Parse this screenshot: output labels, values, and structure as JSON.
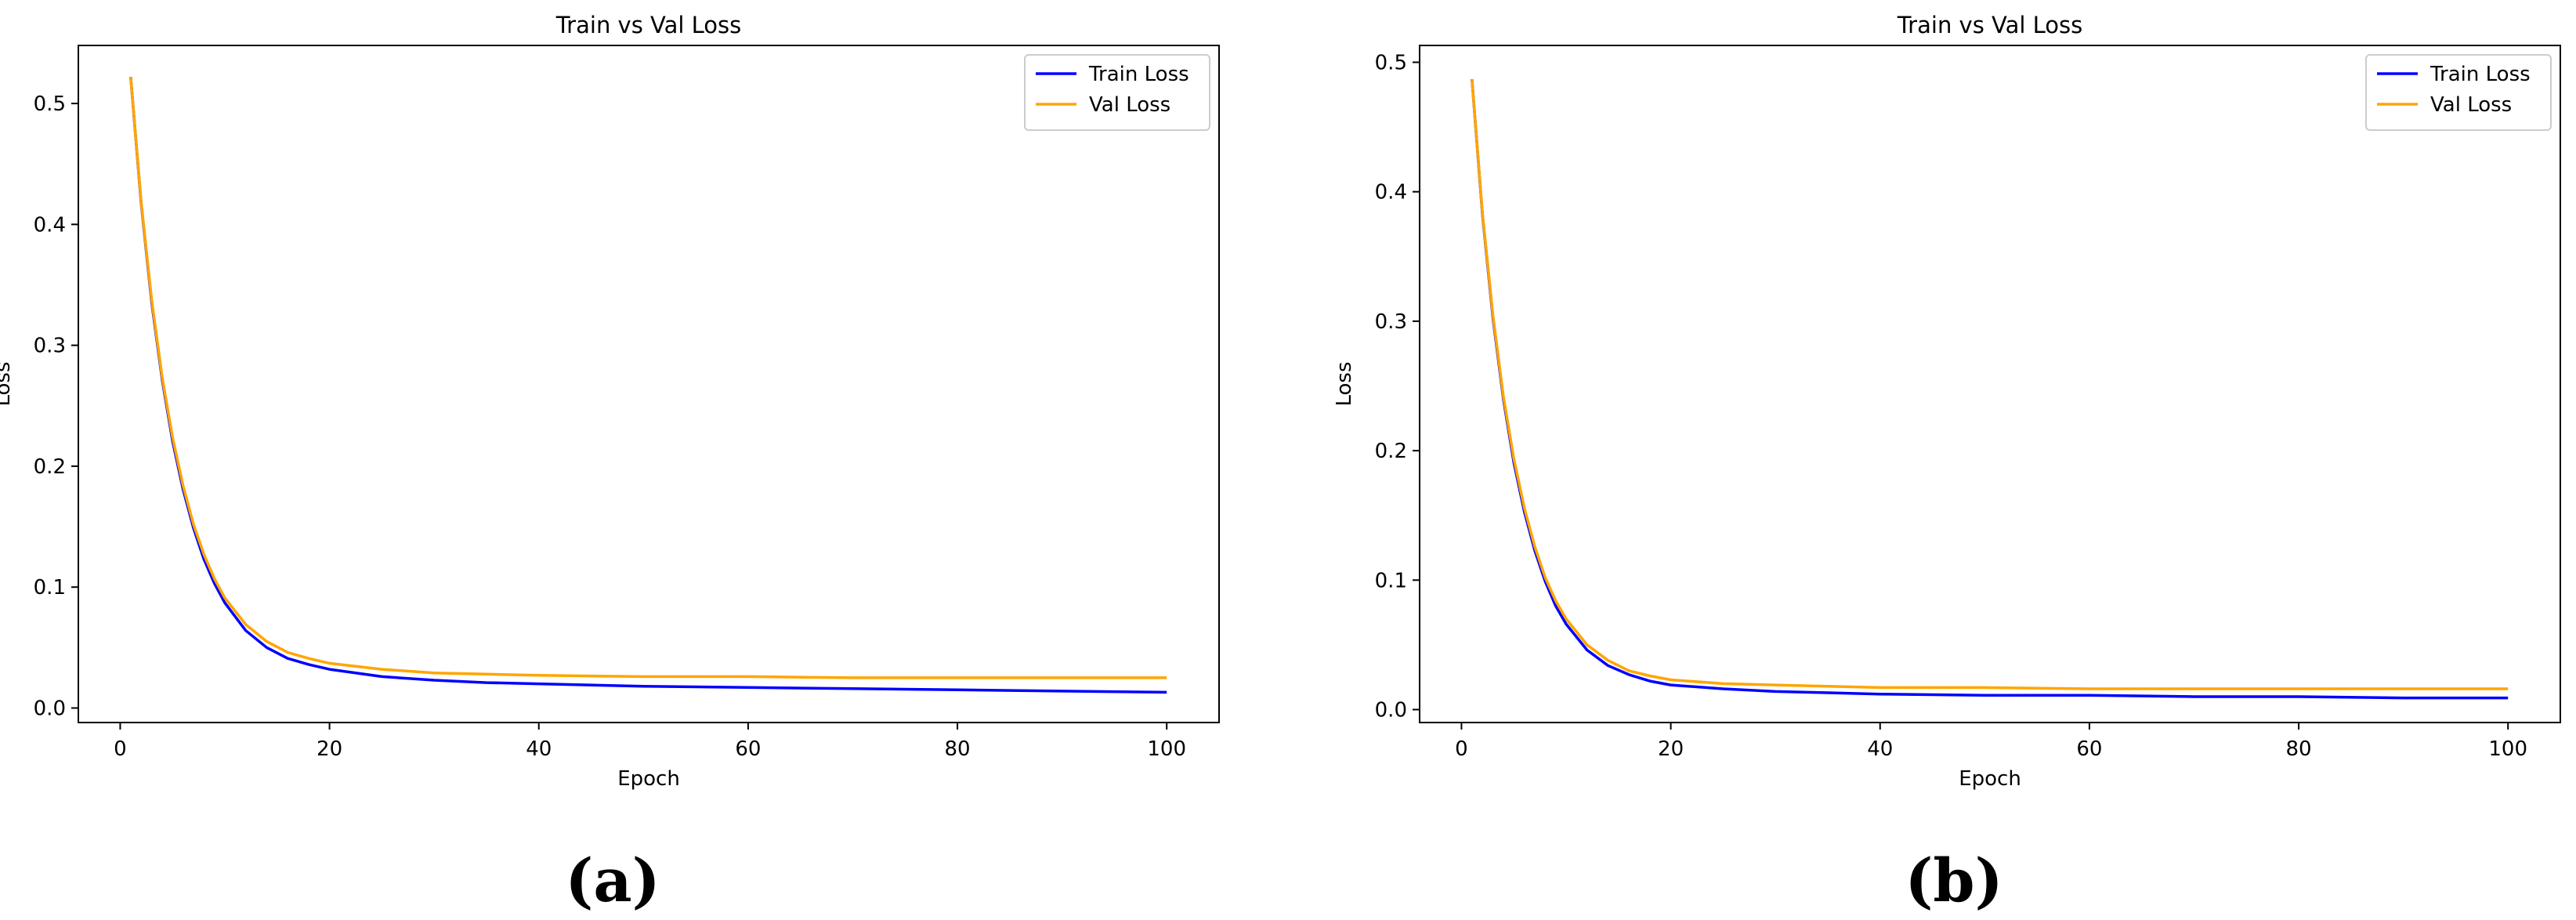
{
  "figure": {
    "panels": [
      {
        "caption": "(a)",
        "chart_index": 0
      },
      {
        "caption": "(b)",
        "chart_index": 1
      }
    ]
  },
  "chart_data": [
    {
      "type": "line",
      "title": "Train vs Val Loss",
      "xlabel": "Epoch",
      "ylabel": "Loss",
      "xlim": [
        -4,
        105
      ],
      "ylim": [
        -0.012,
        0.548
      ],
      "xticks": [
        0,
        20,
        40,
        60,
        80,
        100
      ],
      "yticks": [
        0.0,
        0.1,
        0.2,
        0.3,
        0.4,
        0.5
      ],
      "ytick_labels": [
        "0.0",
        "0.1",
        "0.2",
        "0.3",
        "0.4",
        "0.5"
      ],
      "grid": false,
      "legend_position": "top-right",
      "x": [
        1,
        2,
        3,
        4,
        5,
        6,
        7,
        8,
        9,
        10,
        12,
        14,
        16,
        18,
        20,
        25,
        30,
        35,
        40,
        50,
        60,
        70,
        80,
        90,
        100
      ],
      "series": [
        {
          "name": "Train Loss",
          "color": "#0000ff",
          "values": [
            0.522,
            0.418,
            0.336,
            0.272,
            0.221,
            0.181,
            0.149,
            0.123,
            0.103,
            0.087,
            0.064,
            0.05,
            0.041,
            0.036,
            0.032,
            0.026,
            0.023,
            0.021,
            0.02,
            0.018,
            0.017,
            0.016,
            0.015,
            0.014,
            0.013
          ]
        },
        {
          "name": "Val Loss",
          "color": "#ffa500",
          "values": [
            0.522,
            0.419,
            0.338,
            0.274,
            0.224,
            0.184,
            0.152,
            0.127,
            0.107,
            0.091,
            0.069,
            0.055,
            0.046,
            0.041,
            0.037,
            0.032,
            0.029,
            0.028,
            0.027,
            0.026,
            0.026,
            0.025,
            0.025,
            0.025,
            0.025
          ]
        }
      ]
    },
    {
      "type": "line",
      "title": "Train vs Val Loss",
      "xlabel": "Epoch",
      "ylabel": "Loss",
      "xlim": [
        -4,
        105
      ],
      "ylim": [
        -0.01,
        0.513
      ],
      "xticks": [
        0,
        20,
        40,
        60,
        80,
        100
      ],
      "yticks": [
        0.0,
        0.1,
        0.2,
        0.3,
        0.4,
        0.5
      ],
      "ytick_labels": [
        "0.0",
        "0.1",
        "0.2",
        "0.3",
        "0.4",
        "0.5"
      ],
      "grid": false,
      "legend_position": "top-right",
      "x": [
        1,
        2,
        3,
        4,
        5,
        6,
        7,
        8,
        9,
        10,
        12,
        14,
        16,
        18,
        20,
        25,
        30,
        35,
        40,
        50,
        60,
        70,
        80,
        90,
        100
      ],
      "series": [
        {
          "name": "Train Loss",
          "color": "#0000ff",
          "values": [
            0.487,
            0.383,
            0.303,
            0.24,
            0.191,
            0.153,
            0.123,
            0.099,
            0.08,
            0.066,
            0.046,
            0.034,
            0.027,
            0.022,
            0.019,
            0.016,
            0.014,
            0.013,
            0.012,
            0.011,
            0.011,
            0.01,
            0.01,
            0.009,
            0.009
          ]
        },
        {
          "name": "Val Loss",
          "color": "#ffa500",
          "values": [
            0.487,
            0.384,
            0.305,
            0.242,
            0.194,
            0.156,
            0.126,
            0.102,
            0.084,
            0.07,
            0.05,
            0.038,
            0.03,
            0.026,
            0.023,
            0.02,
            0.019,
            0.018,
            0.017,
            0.017,
            0.016,
            0.016,
            0.016,
            0.016,
            0.016
          ]
        }
      ]
    }
  ]
}
